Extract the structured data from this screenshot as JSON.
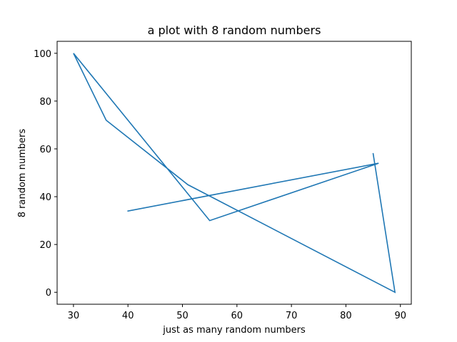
{
  "chart_data": {
    "type": "line",
    "title": "a plot with 8 random numbers",
    "xlabel": "just as many random numbers",
    "ylabel": "8 random numbers",
    "xlim": [
      27,
      92
    ],
    "ylim": [
      -5,
      105
    ],
    "xticks": [
      30,
      40,
      50,
      60,
      70,
      80,
      90
    ],
    "yticks": [
      0,
      20,
      40,
      60,
      80,
      100
    ],
    "grid": false,
    "series": [
      {
        "color": "#1f77b4",
        "x": [
          40,
          86,
          55,
          30,
          36,
          51,
          89,
          85
        ],
        "y": [
          34,
          54,
          30,
          100,
          72,
          45,
          0,
          58
        ]
      }
    ]
  }
}
